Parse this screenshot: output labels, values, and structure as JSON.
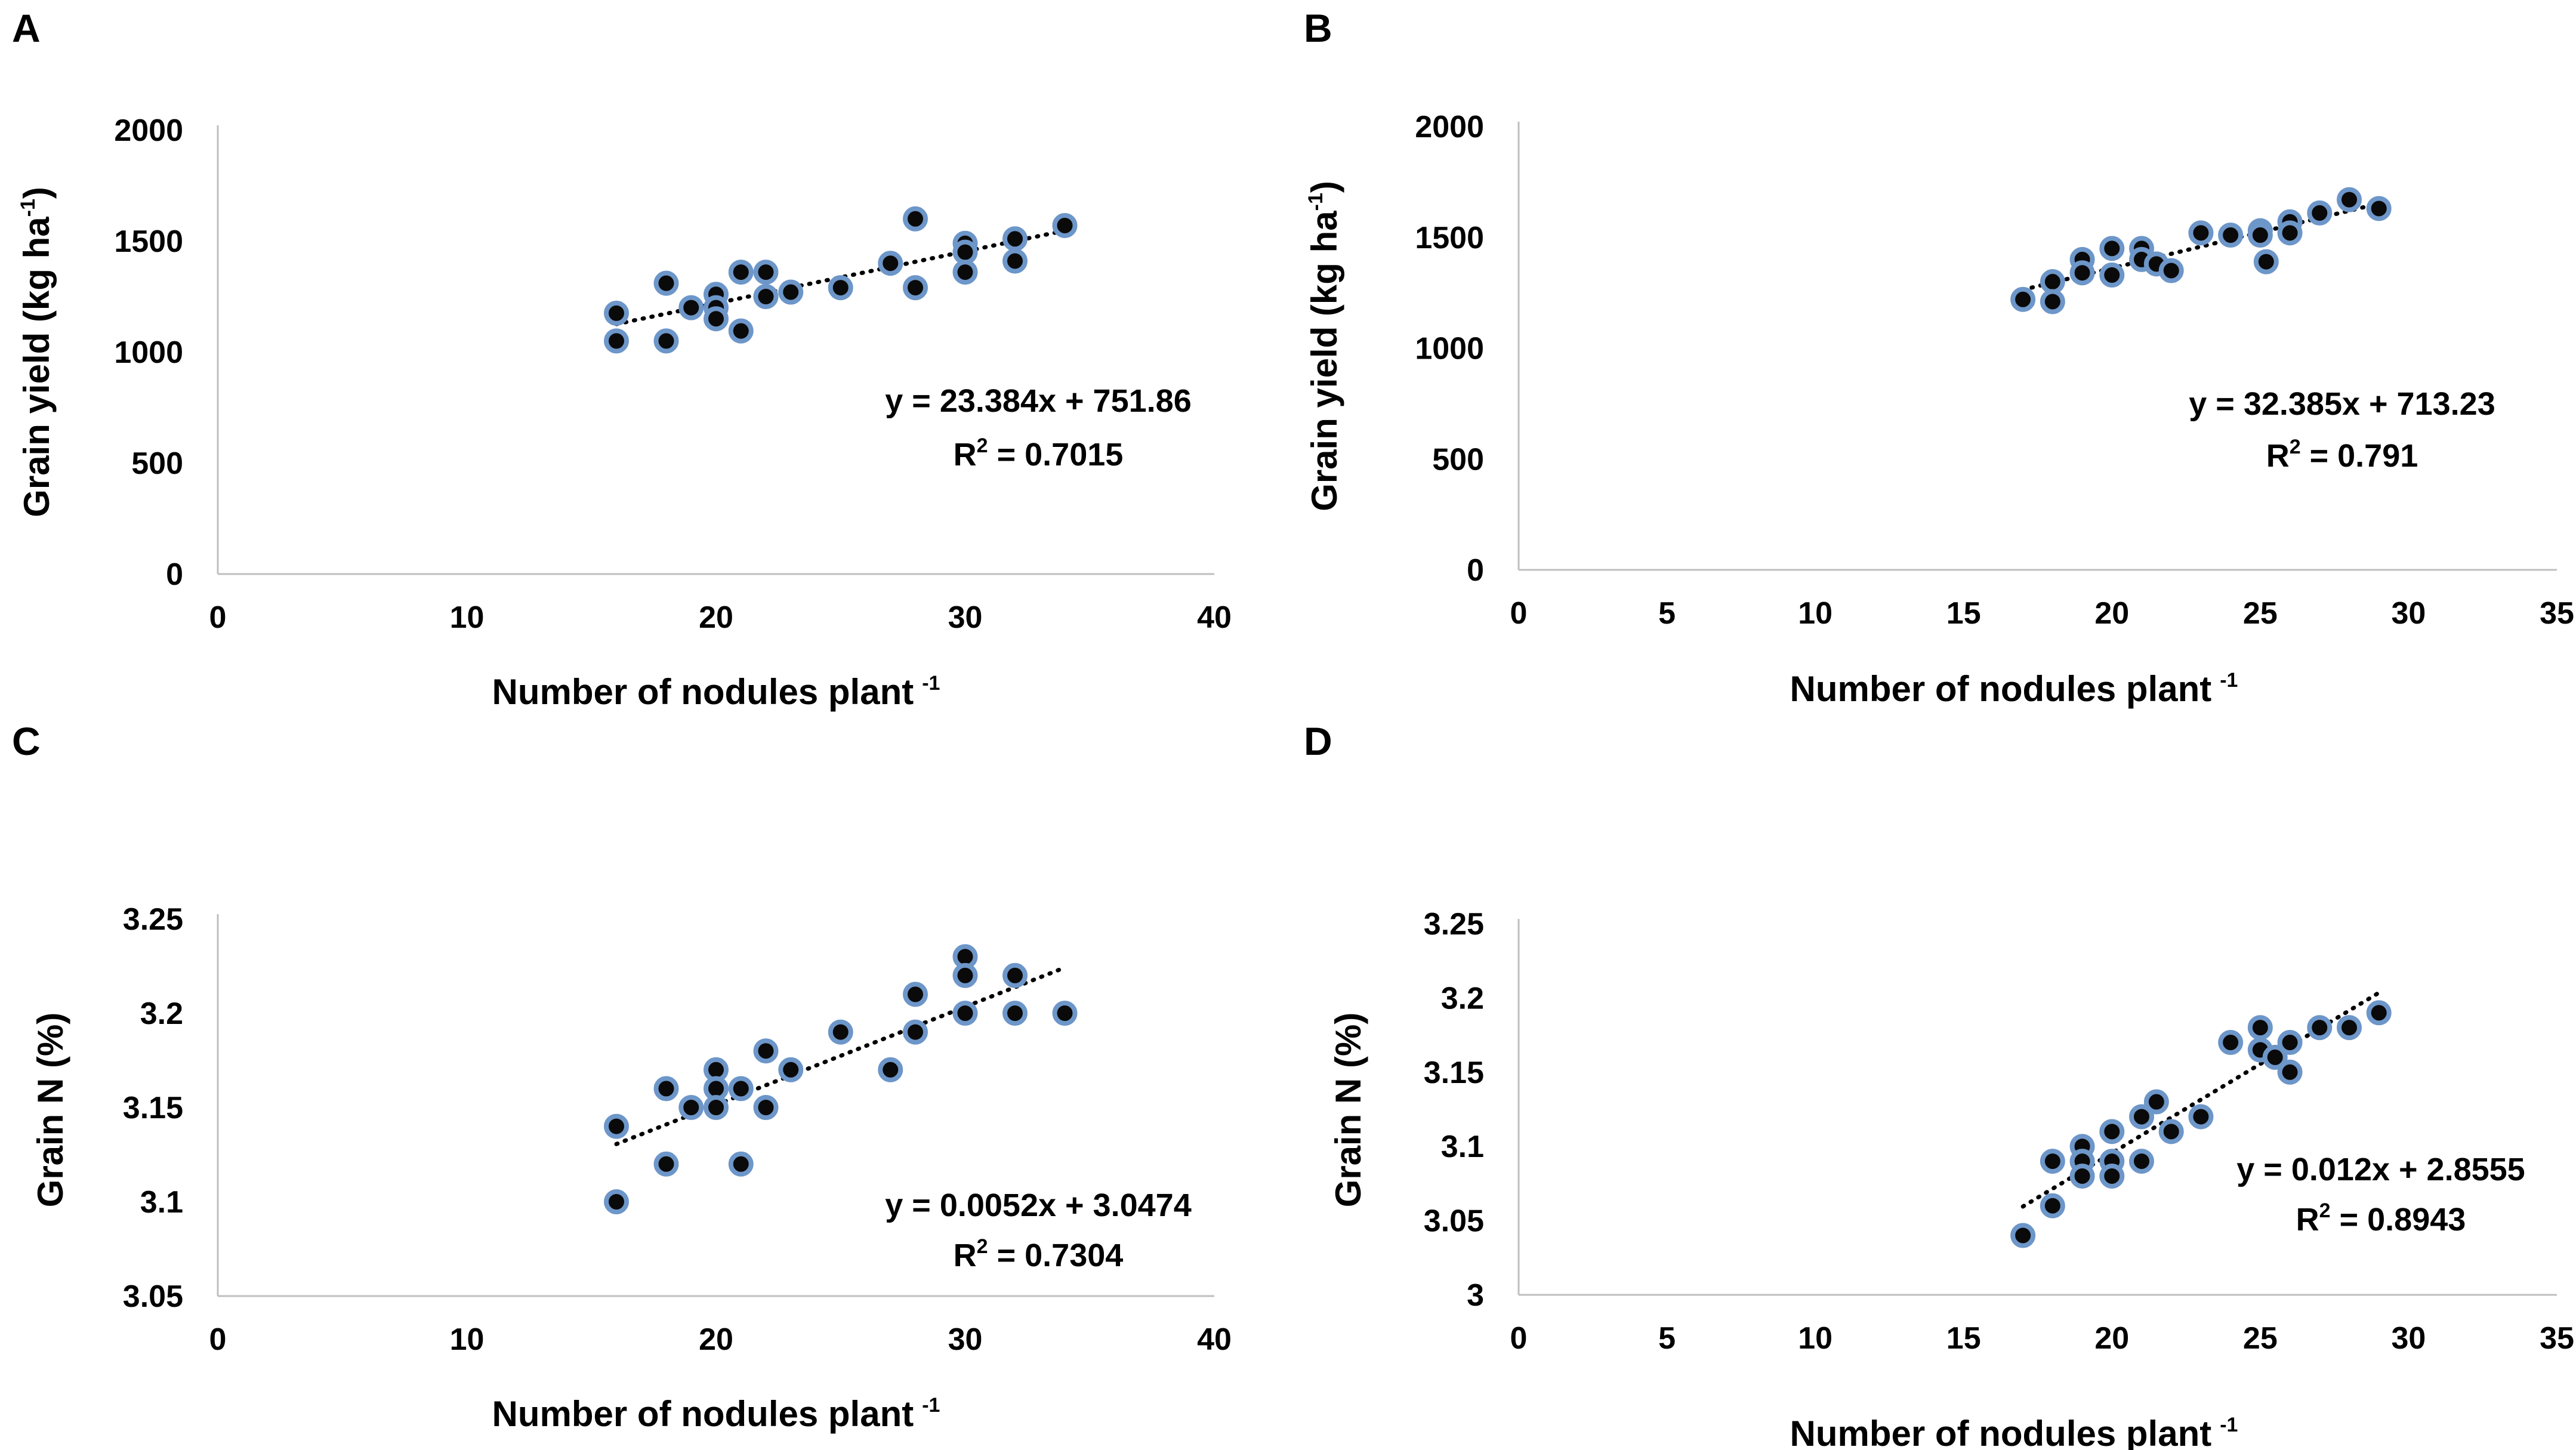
{
  "figure": {
    "style": {
      "point_fill": "#0a0a0a",
      "point_stroke": "#6d96c9",
      "axis_color": "#bfbfbf",
      "trend_color": "#000000"
    },
    "panels": [
      "A",
      "B",
      "C",
      "D"
    ]
  },
  "chart_data": [
    {
      "panel": "A",
      "type": "scatter",
      "xlabel": "Number of nodules plant",
      "xlabel_sup": "-1",
      "ylabel": "Grain yield (kg ha",
      "ylabel_sup": "-1",
      "ylabel_tail": ")",
      "xlim": [
        0,
        40
      ],
      "ylim": [
        0,
        2000
      ],
      "xticks": [
        "0",
        "10",
        "20",
        "30",
        "40"
      ],
      "yticks": [
        "0",
        "500",
        "1000",
        "1500",
        "2000"
      ],
      "trendline": {
        "slope": 23.384,
        "intercept": 751.86,
        "x_range": [
          16,
          34
        ]
      },
      "equation": "y = 23.384x + 751.86",
      "r2_label": "R",
      "r2_sup": "2",
      "r2_value": " = 0.7015",
      "points": [
        [
          16,
          1175
        ],
        [
          16,
          1050
        ],
        [
          18,
          1310
        ],
        [
          18,
          1050
        ],
        [
          19,
          1200
        ],
        [
          20,
          1260
        ],
        [
          20,
          1200
        ],
        [
          20,
          1150
        ],
        [
          21,
          1360
        ],
        [
          21,
          1095
        ],
        [
          22,
          1360
        ],
        [
          22,
          1250
        ],
        [
          23,
          1270
        ],
        [
          25,
          1290
        ],
        [
          27,
          1400
        ],
        [
          28,
          1600
        ],
        [
          28,
          1290
        ],
        [
          30,
          1490
        ],
        [
          30,
          1450
        ],
        [
          30,
          1360
        ],
        [
          32,
          1510
        ],
        [
          32,
          1410
        ],
        [
          34,
          1570
        ]
      ]
    },
    {
      "panel": "B",
      "type": "scatter",
      "xlabel": "Number of nodules plant",
      "xlabel_sup": "-1",
      "ylabel": "Grain yield (kg ha",
      "ylabel_sup": "-1",
      "ylabel_tail": ")",
      "xlim": [
        0,
        35
      ],
      "ylim": [
        0,
        2000
      ],
      "xticks": [
        "0",
        "5",
        "10",
        "15",
        "20",
        "25",
        "30",
        "35"
      ],
      "yticks": [
        "0",
        "500",
        "1000",
        "1500",
        "2000"
      ],
      "trendline": {
        "slope": 32.385,
        "intercept": 713.23,
        "x_range": [
          17,
          29
        ]
      },
      "equation": "y = 32.385x + 713.23",
      "r2_label": "R",
      "r2_sup": "2",
      "r2_value": " = 0.791",
      "points": [
        [
          17,
          1220
        ],
        [
          18,
          1300
        ],
        [
          18,
          1210
        ],
        [
          19,
          1400
        ],
        [
          19,
          1340
        ],
        [
          20,
          1450
        ],
        [
          20,
          1330
        ],
        [
          21,
          1450
        ],
        [
          21,
          1400
        ],
        [
          21.5,
          1380
        ],
        [
          22,
          1350
        ],
        [
          23,
          1520
        ],
        [
          24,
          1510
        ],
        [
          25,
          1530
        ],
        [
          25,
          1510
        ],
        [
          25.2,
          1390
        ],
        [
          26,
          1570
        ],
        [
          26,
          1520
        ],
        [
          27,
          1610
        ],
        [
          28,
          1670
        ],
        [
          29,
          1630
        ]
      ]
    },
    {
      "panel": "C",
      "type": "scatter",
      "xlabel": "Number of nodules plant",
      "xlabel_sup": "-1",
      "ylabel": "Grain N (%)",
      "xlim": [
        0,
        40
      ],
      "ylim": [
        3.05,
        3.25
      ],
      "xticks": [
        "0",
        "10",
        "20",
        "30",
        "40"
      ],
      "yticks": [
        "3.05",
        "3.1",
        "3.15",
        "3.2",
        "3.25"
      ],
      "trendline": {
        "slope": 0.0052,
        "intercept": 3.0474,
        "x_range": [
          16,
          34
        ]
      },
      "equation": "y = 0.0052x + 3.0474",
      "r2_label": "R",
      "r2_sup": "2",
      "r2_value": " = 0.7304",
      "points": [
        [
          16,
          3.14
        ],
        [
          16,
          3.1
        ],
        [
          18,
          3.16
        ],
        [
          18,
          3.12
        ],
        [
          19,
          3.15
        ],
        [
          20,
          3.17
        ],
        [
          20,
          3.16
        ],
        [
          20,
          3.15
        ],
        [
          21,
          3.16
        ],
        [
          21,
          3.12
        ],
        [
          22,
          3.18
        ],
        [
          22,
          3.15
        ],
        [
          23,
          3.17
        ],
        [
          25,
          3.19
        ],
        [
          27,
          3.17
        ],
        [
          28,
          3.21
        ],
        [
          28,
          3.19
        ],
        [
          30,
          3.23
        ],
        [
          30,
          3.22
        ],
        [
          30,
          3.2
        ],
        [
          32,
          3.22
        ],
        [
          32,
          3.2
        ],
        [
          34,
          3.2
        ]
      ]
    },
    {
      "panel": "D",
      "type": "scatter",
      "xlabel": "Number of nodules plant",
      "xlabel_sup": "-1",
      "ylabel": "Grain N (%)",
      "xlim": [
        0,
        35
      ],
      "ylim": [
        3.0,
        3.25
      ],
      "xticks": [
        "0",
        "5",
        "10",
        "15",
        "20",
        "25",
        "30",
        "35"
      ],
      "yticks": [
        "3",
        "3.05",
        "3.1",
        "3.15",
        "3.2",
        "3.25"
      ],
      "trendline": {
        "slope": 0.012,
        "intercept": 2.8555,
        "x_range": [
          17,
          29
        ]
      },
      "equation": "y = 0.012x + 2.8555",
      "r2_label": "R",
      "r2_sup": "2",
      "r2_value": " = 0.8943",
      "points": [
        [
          17,
          3.04
        ],
        [
          18,
          3.09
        ],
        [
          18,
          3.06
        ],
        [
          19,
          3.1
        ],
        [
          19,
          3.09
        ],
        [
          19,
          3.08
        ],
        [
          20,
          3.11
        ],
        [
          20,
          3.09
        ],
        [
          20,
          3.08
        ],
        [
          21,
          3.12
        ],
        [
          21,
          3.09
        ],
        [
          21.5,
          3.13
        ],
        [
          22,
          3.11
        ],
        [
          23,
          3.12
        ],
        [
          24,
          3.17
        ],
        [
          25,
          3.18
        ],
        [
          25,
          3.165
        ],
        [
          25.5,
          3.16
        ],
        [
          26,
          3.17
        ],
        [
          26,
          3.15
        ],
        [
          27,
          3.18
        ],
        [
          28,
          3.18
        ],
        [
          29,
          3.19
        ]
      ]
    }
  ]
}
